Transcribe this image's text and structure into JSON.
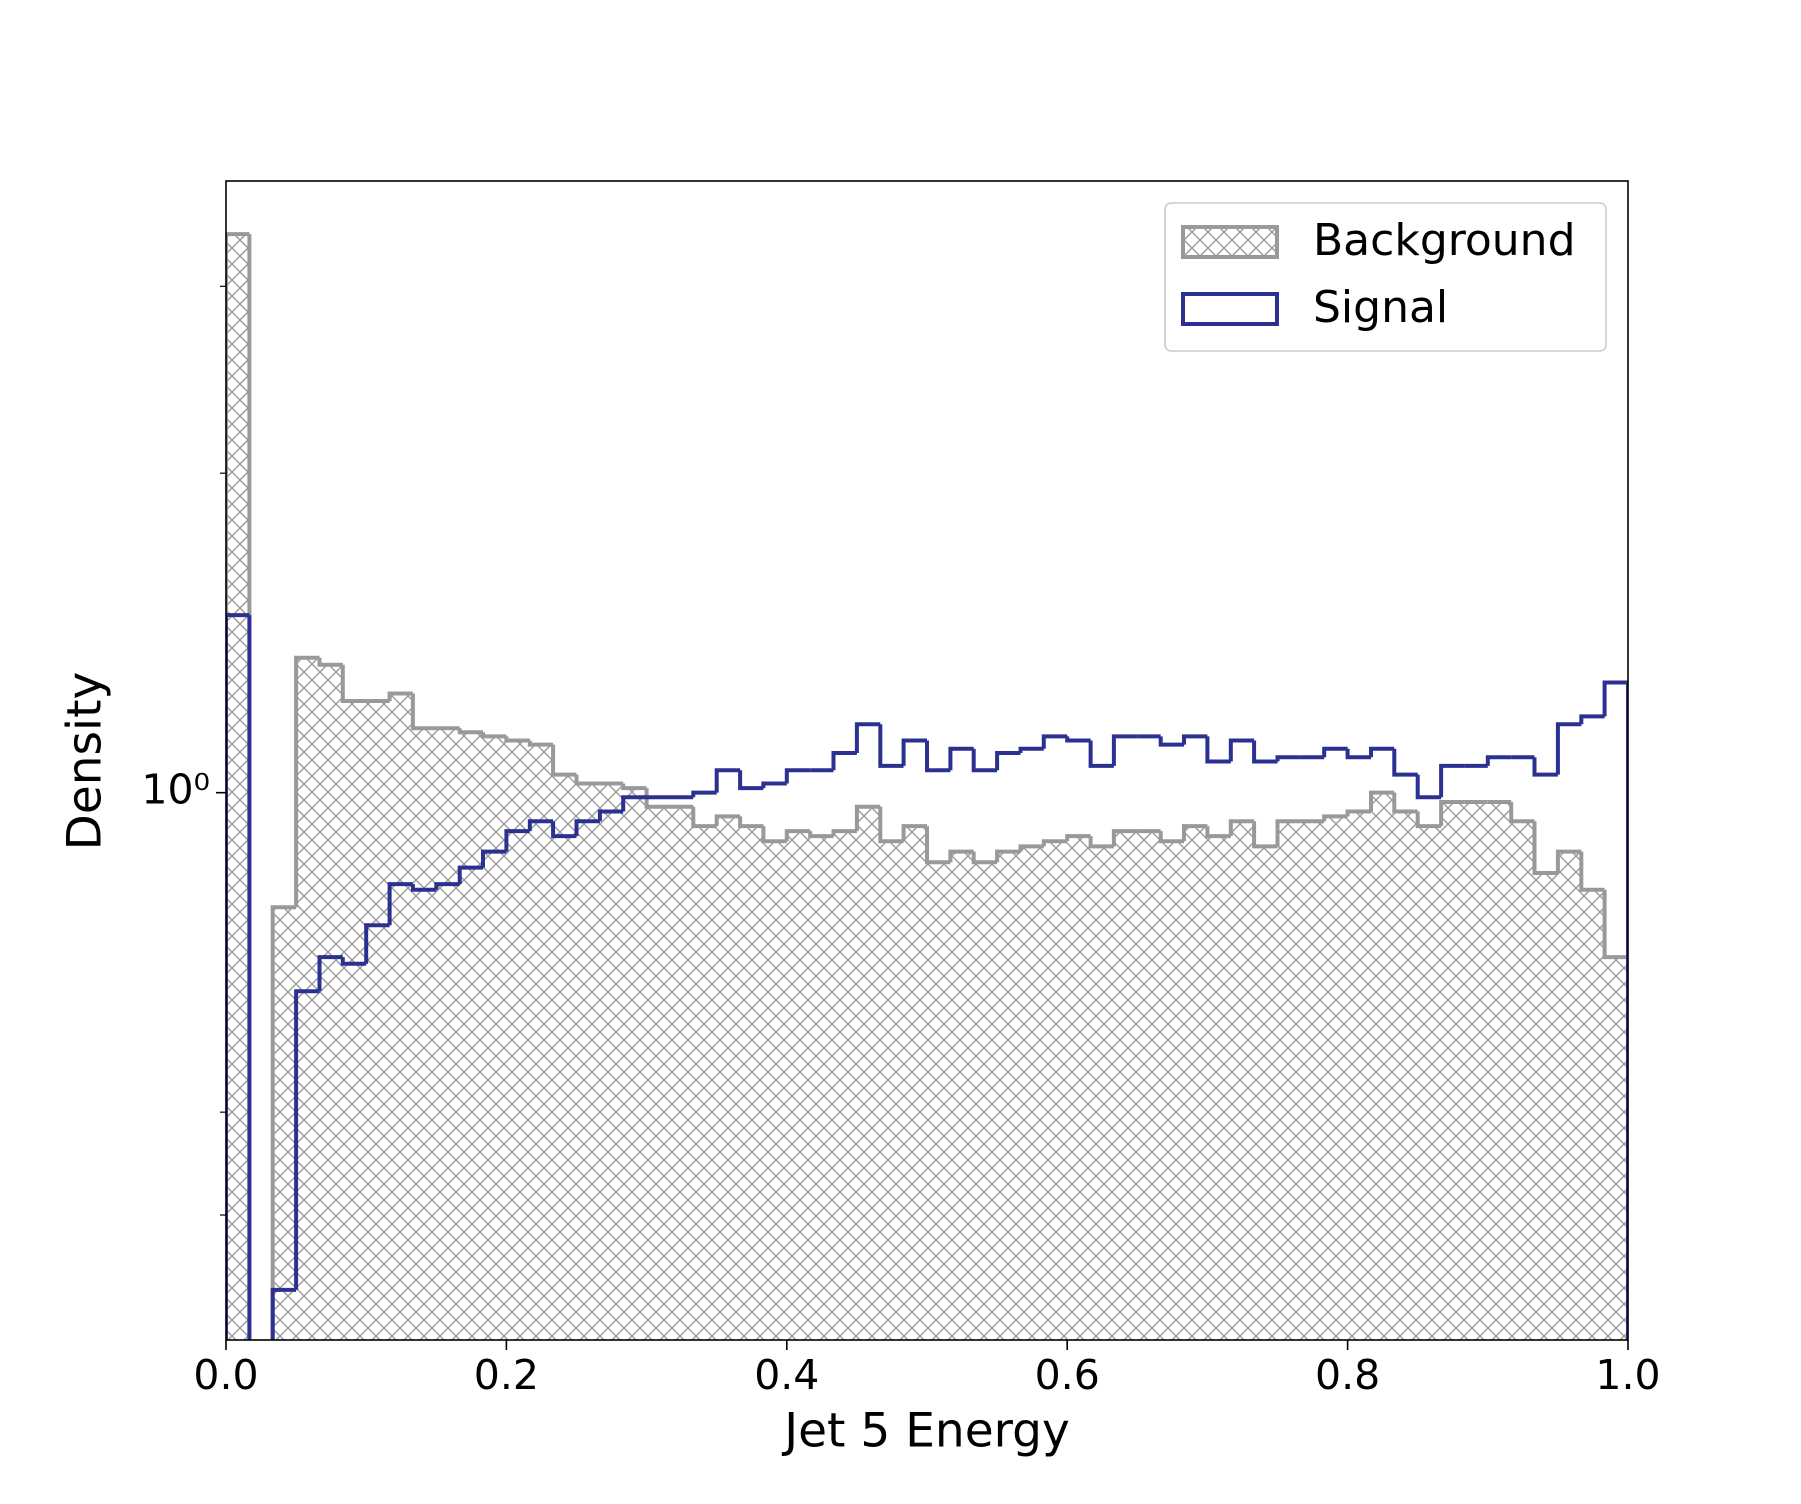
{
  "chart_data": {
    "type": "histogram",
    "xlabel": "Jet 5 Energy",
    "ylabel": "Density",
    "bins": [
      0,
      0.0167,
      0.0333,
      0.05,
      0.0667,
      0.0833,
      0.1,
      0.1167,
      0.1333,
      0.15,
      0.1667,
      0.1833,
      0.2,
      0.2167,
      0.2333,
      0.25,
      0.2667,
      0.2833,
      0.3,
      0.3167,
      0.3333,
      0.35,
      0.3667,
      0.3833,
      0.4,
      0.4167,
      0.4333,
      0.45,
      0.4667,
      0.4833,
      0.5,
      0.5167,
      0.5333,
      0.55,
      0.5667,
      0.5833,
      0.6,
      0.6167,
      0.6333,
      0.65,
      0.6667,
      0.6833,
      0.7,
      0.7167,
      0.7333,
      0.75,
      0.7667,
      0.7833,
      0.8,
      0.8167,
      0.8333,
      0.85,
      0.8667,
      0.8833,
      0.9,
      0.9167,
      0.9333,
      0.95,
      0.9667,
      0.9833,
      1.0
    ],
    "series": [
      {
        "name": "Background",
        "color": "#999999",
        "hatch": "xx",
        "values": [
          3.36,
          0,
          0.78,
          1.34,
          1.32,
          1.22,
          1.22,
          1.24,
          1.15,
          1.15,
          1.14,
          1.13,
          1.12,
          1.11,
          1.04,
          1.02,
          1.02,
          1.01,
          0.97,
          0.97,
          0.93,
          0.95,
          0.93,
          0.9,
          0.92,
          0.91,
          0.92,
          0.97,
          0.9,
          0.93,
          0.86,
          0.88,
          0.86,
          0.88,
          0.89,
          0.9,
          0.91,
          0.89,
          0.92,
          0.92,
          0.9,
          0.93,
          0.91,
          0.94,
          0.89,
          0.94,
          0.94,
          0.95,
          0.96,
          1.0,
          0.96,
          0.93,
          0.98,
          0.98,
          0.98,
          0.94,
          0.84,
          0.88,
          0.81,
          0.7
        ]
      },
      {
        "name": "Signal",
        "color": "#2b3190",
        "values": [
          1.47,
          0,
          0.34,
          0.65,
          0.7,
          0.69,
          0.75,
          0.82,
          0.81,
          0.82,
          0.85,
          0.88,
          0.92,
          0.94,
          0.91,
          0.94,
          0.96,
          0.99,
          0.99,
          0.99,
          1.0,
          1.05,
          1.01,
          1.02,
          1.05,
          1.05,
          1.09,
          1.16,
          1.06,
          1.12,
          1.05,
          1.1,
          1.05,
          1.09,
          1.1,
          1.13,
          1.12,
          1.06,
          1.13,
          1.13,
          1.11,
          1.13,
          1.07,
          1.12,
          1.07,
          1.08,
          1.08,
          1.1,
          1.08,
          1.1,
          1.04,
          0.99,
          1.06,
          1.06,
          1.08,
          1.08,
          1.04,
          1.16,
          1.18,
          1.27
        ]
      }
    ],
    "xlim": [
      0,
      1
    ],
    "xticks": [
      {
        "value": 0,
        "label": "0.0"
      },
      0.2,
      0.4,
      0.6,
      0.8,
      {
        "value": 1,
        "label": "1.0"
      }
    ],
    "ylim": [
      0.305,
      3.77
    ],
    "ylog": true,
    "yticks": [
      {
        "value": 1,
        "label": "10⁰"
      }
    ],
    "yminorticks": [
      0.4,
      0.5,
      2,
      3
    ],
    "legend": "upper right"
  }
}
